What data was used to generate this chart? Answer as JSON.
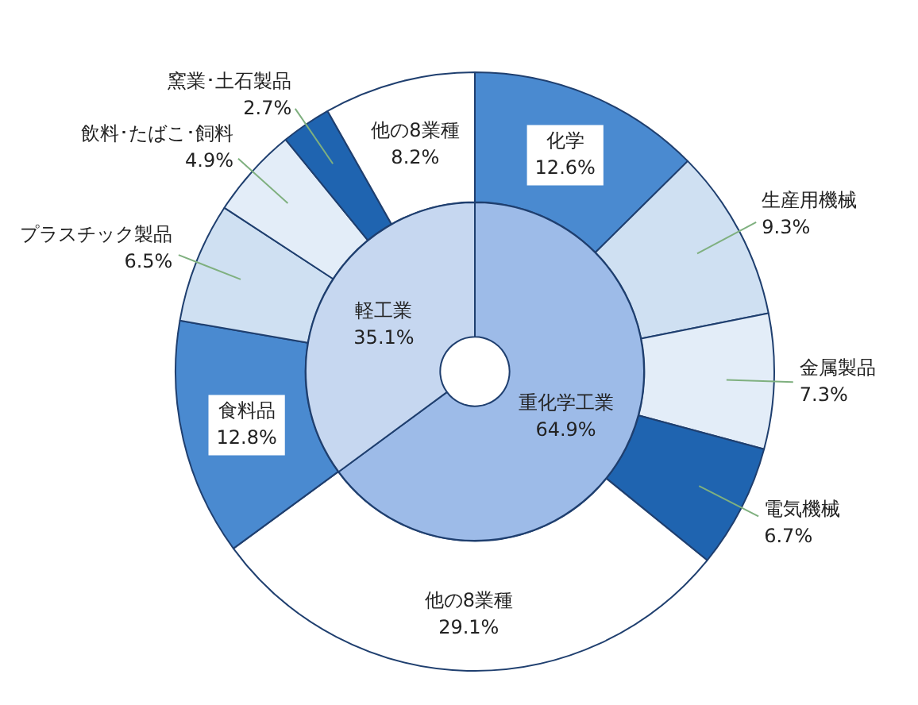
{
  "chart_data": [
    {
      "type": "donut",
      "legend": false,
      "categories": [
        "化学",
        "生産用機械",
        "金属製品",
        "電気機械",
        "他の8業種",
        "食料品",
        "プラスチック製品",
        "飲料･たばこ･飼料",
        "窯業･土石製品",
        "他の8業種"
      ],
      "values": [
        12.6,
        9.3,
        7.3,
        6.7,
        29.1,
        12.8,
        6.5,
        4.9,
        2.7,
        8.2
      ],
      "colors": [
        "#4a8ad0",
        "#cfe0f2",
        "#e3edf8",
        "#1f64b0",
        "#ffffff",
        "#4a8ad0",
        "#cfe0f2",
        "#e3edf8",
        "#1f64b0",
        "#ffffff"
      ],
      "value_labels": [
        "12.6%",
        "9.3%",
        "7.3%",
        "6.7%",
        "29.1%",
        "12.8%",
        "6.5%",
        "4.9%",
        "2.7%",
        "8.2%"
      ]
    },
    {
      "type": "donut",
      "legend": false,
      "categories": [
        "重化学工業",
        "軽工業"
      ],
      "values": [
        64.9,
        35.1
      ],
      "colors": [
        "#9dbbe8",
        "#c6d7f0"
      ],
      "value_labels": [
        "64.9%",
        "35.1%"
      ]
    }
  ]
}
